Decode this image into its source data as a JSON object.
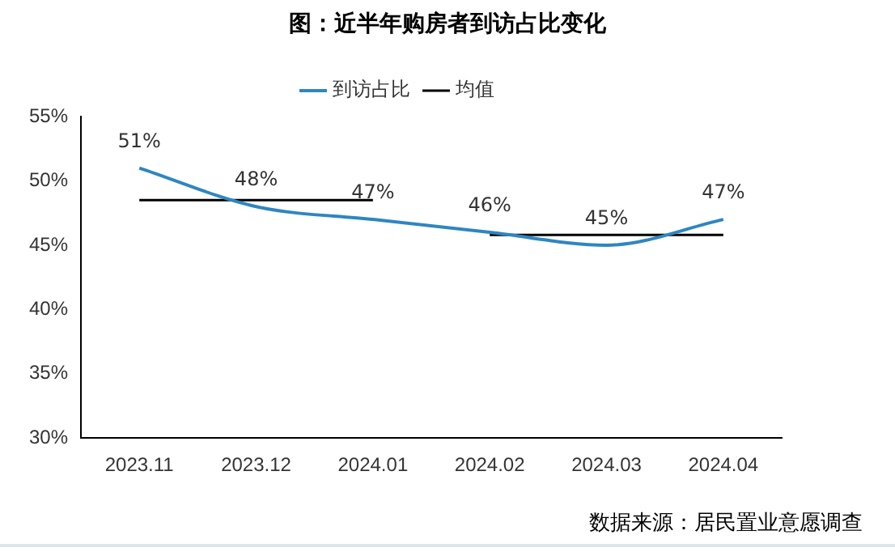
{
  "chart_data": {
    "type": "line",
    "title": "图：近半年购房者到访占比变化",
    "categories": [
      "2023.11",
      "2023.12",
      "2024.01",
      "2024.02",
      "2024.03",
      "2024.04"
    ],
    "series": [
      {
        "name": "到访占比",
        "color": "#2e86c1",
        "values": [
          51,
          48,
          47,
          46,
          45,
          47
        ],
        "value_labels": [
          "51%",
          "48%",
          "47%",
          "46%",
          "45%",
          "47%"
        ]
      },
      {
        "name": "均值",
        "color": "#000000",
        "values": [
          48.5,
          48.5,
          48.5,
          null,
          null,
          null
        ]
      },
      {
        "color": "#000000",
        "values": [
          null,
          null,
          null,
          45.8,
          45.8,
          45.8
        ]
      }
    ],
    "ylim": [
      30,
      55
    ],
    "yticks": [
      {
        "value": 30,
        "label": "30%"
      },
      {
        "value": 35,
        "label": "35%"
      },
      {
        "value": 40,
        "label": "40%"
      },
      {
        "value": 45,
        "label": "45%"
      },
      {
        "value": 50,
        "label": "50%"
      },
      {
        "value": 55,
        "label": "55%"
      }
    ],
    "grid": false,
    "legend": "top",
    "marker": "none",
    "annotations": [
      "数据来源：居民置业意愿调查"
    ]
  }
}
